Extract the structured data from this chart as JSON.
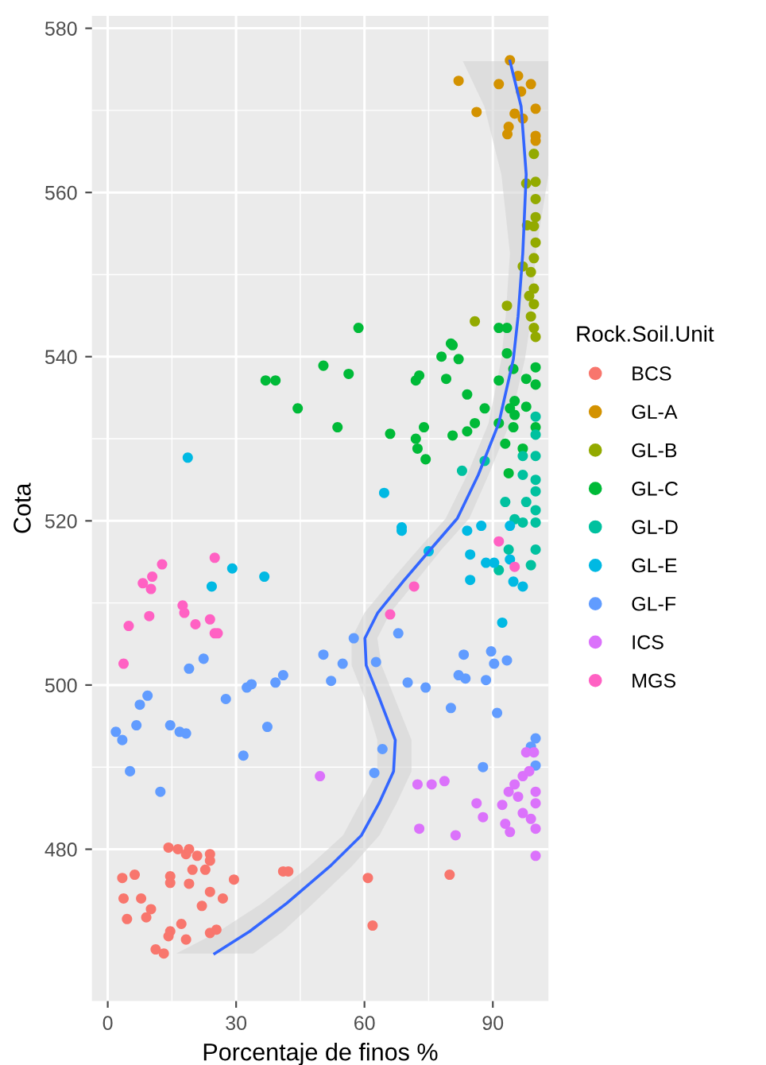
{
  "chart_data": {
    "type": "scatter",
    "xlabel": "Porcentaje de finos %",
    "ylabel": "Cota",
    "legend_title": "Rock.Soil.Unit",
    "xlim": [
      -3.7,
      103
    ],
    "xticks": [
      0,
      30,
      60,
      90
    ],
    "ylim": [
      461.5,
      581.5
    ],
    "yticks": [
      480,
      500,
      520,
      540,
      560,
      580
    ],
    "grid": true,
    "legend": "right",
    "marker": "circle",
    "series": [
      {
        "name": "BCS",
        "color": "#f8766d",
        "x": [
          3.4,
          6.3,
          3.7,
          7.8,
          4.5,
          9,
          10.1,
          11.2,
          13.1,
          14.2,
          16.4,
          18.3,
          19,
          14.6,
          14.6,
          14.6,
          14.2,
          17.2,
          18.3,
          19,
          19.8,
          20.9,
          22,
          22.8,
          23.9,
          23.9,
          23.9,
          23.9,
          26.9,
          29.5,
          41,
          42.2,
          60.8,
          61.9,
          79.9,
          25.4
        ],
        "values": [
          476.5,
          476.9,
          474,
          474,
          471.5,
          471.7,
          472.7,
          467.8,
          467.3,
          480.2,
          480,
          479.4,
          480,
          476.7,
          475.9,
          470,
          469.4,
          470.9,
          469,
          475.8,
          477.5,
          479.2,
          473.1,
          477.5,
          474.8,
          479.4,
          478.6,
          469.8,
          474,
          476.3,
          477.3,
          477.3,
          476.5,
          470.7,
          476.9,
          470.2
        ]
      },
      {
        "name": "GL-A",
        "color": "#d39200",
        "x": [
          94,
          82,
          91.4,
          98.9,
          95.9,
          96.6,
          86.2,
          95.1,
          100,
          93.7,
          93.4,
          100,
          100,
          97
        ],
        "values": [
          576.1,
          573.6,
          573.2,
          573.2,
          574.2,
          572.3,
          569.8,
          569.6,
          570.2,
          568,
          567.1,
          566.9,
          566.3,
          569
        ]
      },
      {
        "name": "GL-B",
        "color": "#93aa00",
        "x": [
          99.6,
          100,
          97.8,
          100,
          100,
          99.6,
          100,
          99.6,
          98.9,
          99.6,
          98.5,
          99.6,
          93.3,
          85.8,
          98.9,
          99.6,
          100,
          97,
          98
        ],
        "values": [
          564.7,
          561.3,
          561.1,
          559.2,
          557,
          555.9,
          553.9,
          552,
          550.3,
          548.3,
          547.4,
          546.4,
          546.2,
          544.3,
          544.9,
          543.5,
          542.4,
          551,
          556
        ]
      },
      {
        "name": "GL-C",
        "color": "#00ba38",
        "x": [
          58.6,
          91.4,
          93.3,
          80.2,
          93.3,
          78,
          80.6,
          50.4,
          56.3,
          36.9,
          39.2,
          44.4,
          53.7,
          66,
          72,
          72.8,
          79.1,
          82,
          84,
          88.1,
          91.4,
          94.8,
          97.8,
          100,
          100,
          95.1,
          94,
          97.8,
          91.4,
          94.8,
          85.8,
          84,
          80.6,
          73.9,
          72,
          72.4,
          74.3,
          95.1,
          100,
          93.7,
          97,
          92.9
        ],
        "values": [
          543.5,
          543.5,
          543.5,
          541.6,
          540.4,
          540,
          541.4,
          538.9,
          537.9,
          537.1,
          537.1,
          533.7,
          531.4,
          530.6,
          537.1,
          537.7,
          537.3,
          539.7,
          535.4,
          533.7,
          537.1,
          538.5,
          537.3,
          538.7,
          536.6,
          534.6,
          533.7,
          533.9,
          531.9,
          531.4,
          531.9,
          530.9,
          530.4,
          531.4,
          530,
          528.8,
          527.5,
          532.9,
          531.4,
          525.8,
          528.8,
          529.4
        ]
      },
      {
        "name": "GL-D",
        "color": "#00c19f",
        "x": [
          100,
          100,
          97,
          100,
          82.8,
          88.1,
          97,
          100,
          100,
          97.8,
          92.9,
          100,
          100,
          95.1,
          97,
          100,
          98.9,
          93.7,
          91.4
        ],
        "values": [
          532.7,
          530.5,
          527.9,
          527.9,
          526.1,
          527.3,
          525.6,
          525,
          523.6,
          522.3,
          522.3,
          521.3,
          519.8,
          520.2,
          519.8,
          516.5,
          514.6,
          516.5,
          514
        ]
      },
      {
        "name": "GL-E",
        "color": "#00b9e3",
        "x": [
          18.7,
          64.6,
          68.7,
          68.7,
          75,
          84,
          84.7,
          87.3,
          88.4,
          90.3,
          94,
          94.8,
          97,
          94,
          92.2,
          84.7,
          29.1,
          24.3,
          36.6
        ],
        "values": [
          527.7,
          523.4,
          518.8,
          519.2,
          516.3,
          518.8,
          515.9,
          519.4,
          514.9,
          514.9,
          515.3,
          512.6,
          512,
          519.4,
          507.6,
          512.8,
          514.2,
          512,
          513.2
        ]
      },
      {
        "name": "GL-F",
        "color": "#619cff",
        "x": [
          1.9,
          3.4,
          5.2,
          6.7,
          7.5,
          9.3,
          12.3,
          14.6,
          16.8,
          18.3,
          19,
          22.4,
          27.6,
          31.7,
          32.5,
          33.6,
          37.3,
          39.2,
          41,
          50.4,
          52.2,
          54.9,
          57.5,
          62.7,
          62.3,
          64.2,
          70.1,
          74.3,
          80.2,
          82,
          83.6,
          83.2,
          88.4,
          89.6,
          90.3,
          93.3,
          91,
          87.7,
          100,
          100,
          98.9,
          67.9
        ],
        "values": [
          494.3,
          493.3,
          489.5,
          495.1,
          497.6,
          498.7,
          487,
          495.1,
          494.3,
          494.1,
          502,
          503.2,
          498.3,
          491.4,
          499.7,
          500.1,
          494.9,
          500.3,
          501.2,
          503.7,
          500.5,
          502.6,
          505.7,
          502.8,
          489.3,
          492.2,
          500.3,
          499.7,
          497.2,
          501.2,
          500.8,
          503.7,
          500.6,
          504.1,
          502.6,
          503,
          496.6,
          490,
          493.5,
          490.2,
          492.5,
          506.3
        ]
      },
      {
        "name": "ICS",
        "color": "#db72fb",
        "x": [
          49.6,
          72.8,
          72.4,
          75.7,
          78.7,
          81.3,
          86.2,
          87.7,
          92.2,
          92.9,
          94,
          93.7,
          95.1,
          97,
          98.5,
          97.8,
          99.6,
          100,
          100,
          98.9,
          97,
          100,
          100,
          95.9
        ],
        "values": [
          488.9,
          482.5,
          487.9,
          487.9,
          488.3,
          481.7,
          485.6,
          483.9,
          485.4,
          483.1,
          482.1,
          487,
          487.9,
          488.9,
          489.5,
          491.8,
          491.8,
          487,
          485.6,
          483.7,
          484.4,
          482.5,
          479.2,
          486.4
        ]
      },
      {
        "name": "MGS",
        "color": "#ff61c3",
        "x": [
          12.7,
          8.2,
          10.4,
          10.1,
          25,
          17.5,
          17.9,
          4.9,
          9.7,
          20.5,
          23.9,
          25,
          25.7,
          91.4,
          95.1,
          71.6,
          66,
          3.7
        ],
        "values": [
          514.7,
          512.4,
          513.2,
          511.7,
          515.5,
          509.7,
          508.8,
          507.2,
          508.4,
          507.4,
          508,
          506.3,
          506.3,
          517.5,
          514.4,
          512,
          508.6,
          502.6
        ]
      },
      {
        "type": "area",
        "color": "#d4d4d4",
        "marker": "none",
        "x": [
          83,
          88,
          92,
          94,
          93,
          92,
          89,
          84,
          79,
          72.5,
          66,
          60,
          57,
          57,
          60,
          63,
          63,
          59,
          55,
          47,
          36,
          26,
          16,
          34,
          41,
          48,
          57,
          63.5,
          67.5,
          71,
          71,
          67,
          64,
          63,
          66,
          72,
          78,
          84.5,
          89,
          94,
          97.5,
          99,
          100,
          103,
          103,
          103
        ],
        "values": [
          576,
          570.5,
          562.2,
          552.6,
          544.9,
          539.7,
          531.9,
          525.6,
          520.3,
          516.5,
          512.6,
          508.8,
          505.7,
          502.4,
          498.5,
          493.3,
          489.5,
          485.6,
          481.7,
          477.9,
          473.4,
          470,
          467.3,
          467.3,
          470,
          473.4,
          477.9,
          481.7,
          485.6,
          489.5,
          493.3,
          498.5,
          502.4,
          505.7,
          508.8,
          512.6,
          516.5,
          520.3,
          525.6,
          531.9,
          539.7,
          544.9,
          552.6,
          562.2,
          570.5,
          576
        ]
      },
      {
        "type": "line",
        "color": "#3366ff",
        "marker": "none",
        "x": [
          94,
          96.6,
          97.8,
          97,
          95.9,
          94.8,
          91.4,
          86.6,
          81.7,
          75.4,
          69,
          63.1,
          60.1,
          60.4,
          63.4,
          67.2,
          66.8,
          63.4,
          59.3,
          51.9,
          41.8,
          33.2,
          25
        ],
        "values": [
          576,
          570.5,
          562.2,
          552.6,
          544.9,
          539.7,
          531.9,
          525.6,
          520.3,
          516.5,
          512.6,
          508.8,
          505.7,
          502.4,
          498.5,
          493.3,
          489.5,
          485.6,
          481.7,
          477.9,
          473.4,
          470,
          467.3
        ]
      }
    ]
  }
}
